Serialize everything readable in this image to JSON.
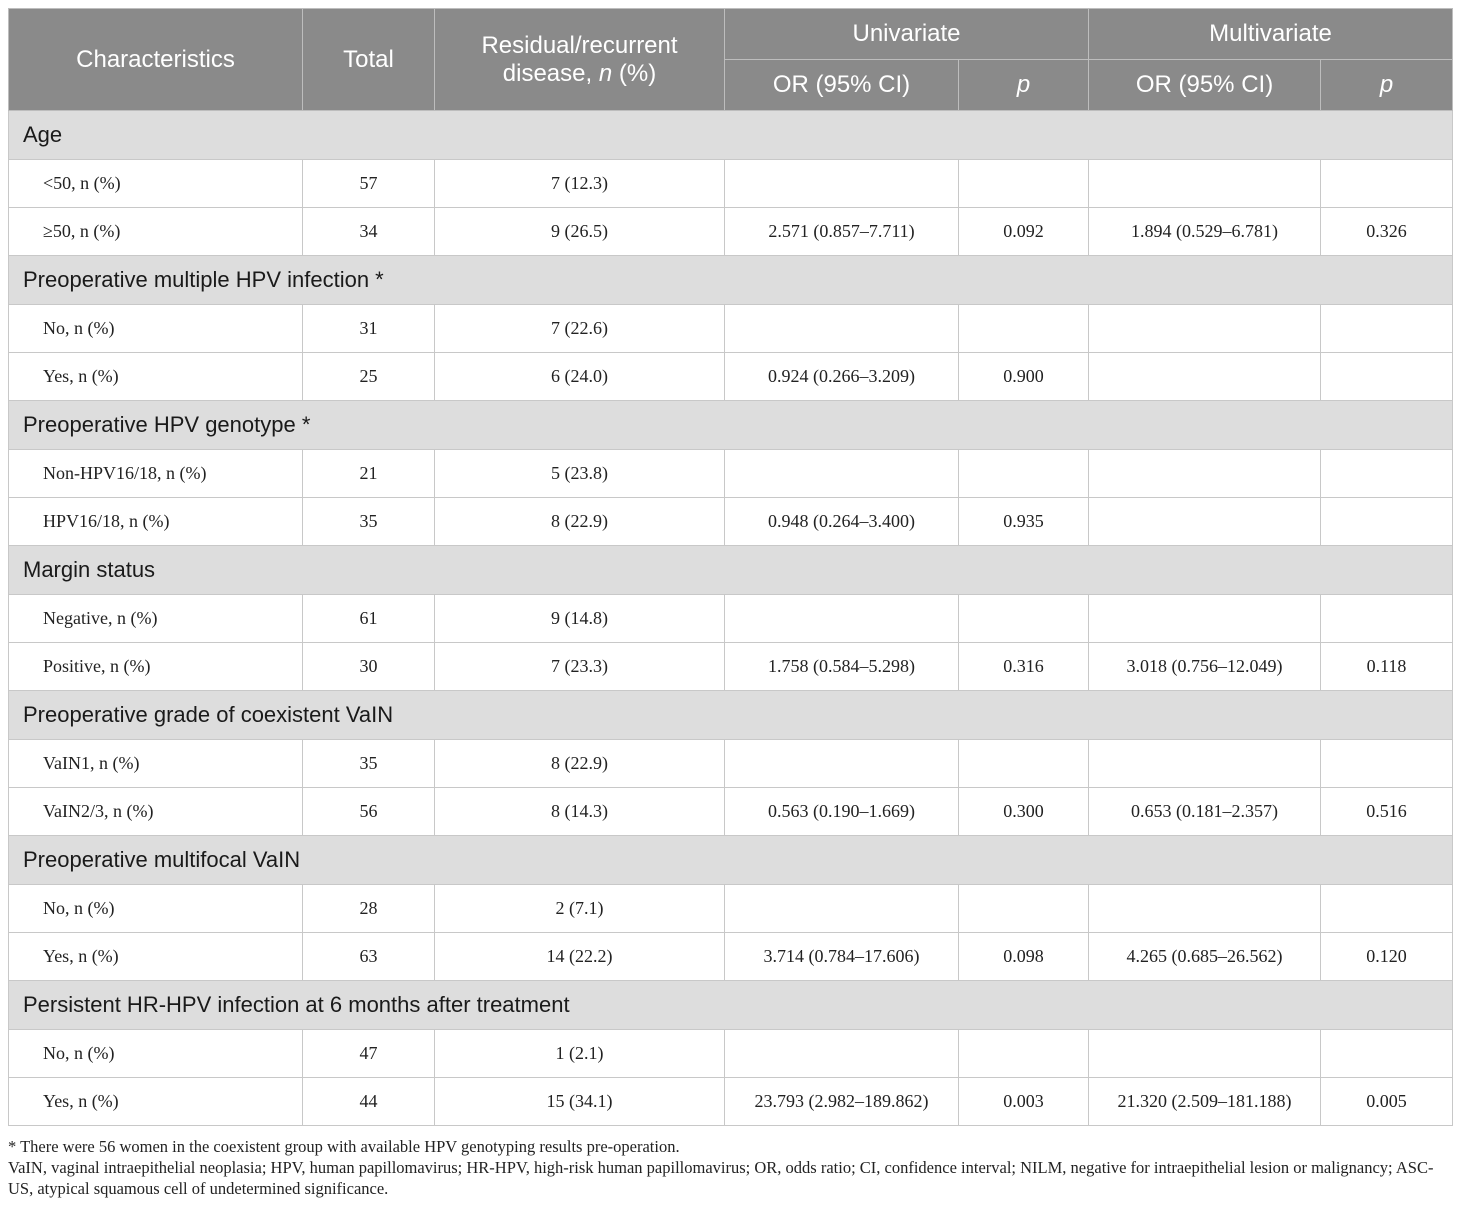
{
  "header": {
    "characteristics": "Characteristics",
    "total": "Total",
    "residual_line1": "Residual/recurrent",
    "residual_line2_pre": "disease, ",
    "residual_line2_n": "n",
    "residual_line2_post": " (%)",
    "univariate": "Univariate",
    "multivariate": "Multivariate",
    "or_ci": "OR (95% CI)",
    "p": "p"
  },
  "groups": [
    {
      "title": "Age",
      "rows": [
        {
          "label": "<50, n (%)",
          "total": "57",
          "residual": "7 (12.3)",
          "uni_or": "",
          "uni_p": "",
          "multi_or": "",
          "multi_p": ""
        },
        {
          "label": "≥50, n (%)",
          "total": "34",
          "residual": "9 (26.5)",
          "uni_or": "2.571 (0.857–7.711)",
          "uni_p": "0.092",
          "multi_or": "1.894 (0.529–6.781)",
          "multi_p": "0.326"
        }
      ]
    },
    {
      "title": "Preoperative multiple HPV infection *",
      "rows": [
        {
          "label": "No, n (%)",
          "total": "31",
          "residual": "7 (22.6)",
          "uni_or": "",
          "uni_p": "",
          "multi_or": "",
          "multi_p": ""
        },
        {
          "label": "Yes, n (%)",
          "total": "25",
          "residual": "6 (24.0)",
          "uni_or": "0.924 (0.266–3.209)",
          "uni_p": "0.900",
          "multi_or": "",
          "multi_p": ""
        }
      ]
    },
    {
      "title": "Preoperative HPV genotype *",
      "rows": [
        {
          "label": "Non-HPV16/18, n (%)",
          "total": "21",
          "residual": "5 (23.8)",
          "uni_or": "",
          "uni_p": "",
          "multi_or": "",
          "multi_p": ""
        },
        {
          "label": "HPV16/18, n (%)",
          "total": "35",
          "residual": "8 (22.9)",
          "uni_or": "0.948 (0.264–3.400)",
          "uni_p": "0.935",
          "multi_or": "",
          "multi_p": ""
        }
      ]
    },
    {
      "title": "Margin status",
      "rows": [
        {
          "label": "Negative, n (%)",
          "total": "61",
          "residual": "9 (14.8)",
          "uni_or": "",
          "uni_p": "",
          "multi_or": "",
          "multi_p": ""
        },
        {
          "label": "Positive, n (%)",
          "total": "30",
          "residual": "7 (23.3)",
          "uni_or": "1.758 (0.584–5.298)",
          "uni_p": "0.316",
          "multi_or": "3.018 (0.756–12.049)",
          "multi_p": "0.118"
        }
      ]
    },
    {
      "title": "Preoperative grade of coexistent VaIN",
      "rows": [
        {
          "label": "VaIN1, n (%)",
          "total": "35",
          "residual": "8 (22.9)",
          "uni_or": "",
          "uni_p": "",
          "multi_or": "",
          "multi_p": ""
        },
        {
          "label": "VaIN2/3, n (%)",
          "total": "56",
          "residual": "8 (14.3)",
          "uni_or": "0.563 (0.190–1.669)",
          "uni_p": "0.300",
          "multi_or": "0.653 (0.181–2.357)",
          "multi_p": "0.516"
        }
      ]
    },
    {
      "title": "Preoperative multifocal VaIN",
      "rows": [
        {
          "label": "No, n (%)",
          "total": "28",
          "residual": "2 (7.1)",
          "uni_or": "",
          "uni_p": "",
          "multi_or": "",
          "multi_p": ""
        },
        {
          "label": "Yes, n (%)",
          "total": "63",
          "residual": "14 (22.2)",
          "uni_or": "3.714 (0.784–17.606)",
          "uni_p": "0.098",
          "multi_or": "4.265 (0.685–26.562)",
          "multi_p": "0.120"
        }
      ]
    },
    {
      "title": "Persistent HR-HPV infection at 6 months after treatment",
      "rows": [
        {
          "label": "No, n (%)",
          "total": "47",
          "residual": "1 (2.1)",
          "uni_or": "",
          "uni_p": "",
          "multi_or": "",
          "multi_p": ""
        },
        {
          "label": "Yes, n (%)",
          "total": "44",
          "residual": "15 (34.1)",
          "uni_or": "23.793 (2.982–189.862)",
          "uni_p": "0.003",
          "multi_or": "21.320 (2.509–181.188)",
          "multi_p": "0.005"
        }
      ]
    }
  ],
  "footnotes": {
    "note1": "* There were 56 women in the coexistent group with available HPV genotyping results pre-operation.",
    "note2": "VaIN, vaginal intraepithelial neoplasia; HPV, human papillomavirus; HR-HPV, high-risk human papillomavirus; OR, odds ratio; CI, confidence interval; NILM, negative for intraepithelial lesion or malignancy; ASC-US, atypical squamous cell of undetermined significance."
  }
}
